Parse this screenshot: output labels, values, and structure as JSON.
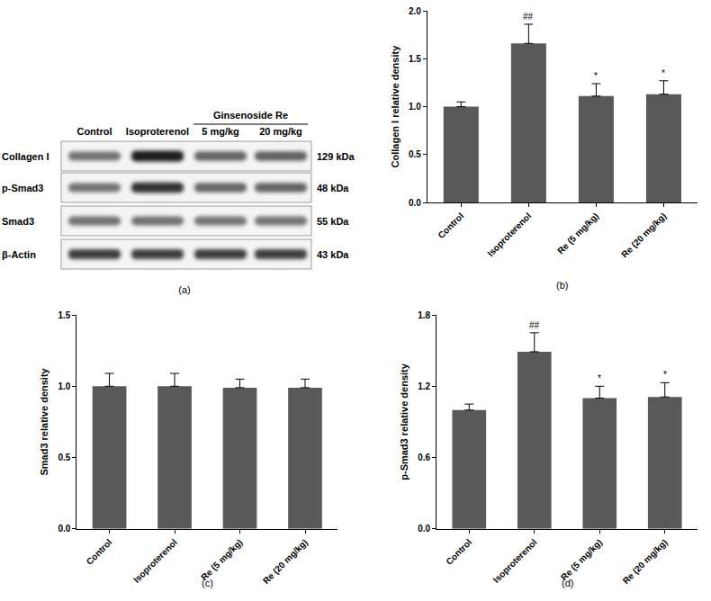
{
  "blot": {
    "lanes": [
      "Control",
      "Isoproterenol",
      {
        "group": "Ginsenoside Re",
        "lanes": [
          "5 mg/kg",
          "20 mg/kg"
        ]
      }
    ],
    "rows": [
      {
        "label": "Collagen I",
        "size": "129 kDa"
      },
      {
        "label": "p-Smad3",
        "size": "48 kDa"
      },
      {
        "label": "Smad3",
        "size": "55 kDa"
      },
      {
        "label": "β-Actin",
        "size": "43 kDa"
      }
    ],
    "label": "(a)"
  },
  "chart_data": [
    {
      "type": "bar",
      "label": "(b)",
      "categories": [
        "Control",
        "Isoproterenol",
        "Re (5 mg/kg)",
        "Re (20 mg/kg)"
      ],
      "values": [
        1.0,
        1.66,
        1.11,
        1.13
      ],
      "errors": [
        0.05,
        0.2,
        0.13,
        0.14
      ],
      "y_label": "Collagen I relative density",
      "color": "#595959",
      "ylim": [
        0,
        2
      ],
      "yticks": [
        {
          "value": 0,
          "label": "0.0"
        },
        {
          "value": 0.5,
          "label": "0.5"
        },
        {
          "value": 1,
          "label": "1.0"
        },
        {
          "value": 1.5,
          "label": "1.5"
        },
        {
          "value": 2,
          "label": "2.0"
        }
      ],
      "grid": false,
      "annotations": [
        {
          "category": "Isoproterenol",
          "text": "##"
        },
        {
          "category": "Re (5 mg/kg)",
          "text": "*"
        },
        {
          "category": "Re (20 mg/kg)",
          "text": "*"
        }
      ]
    },
    {
      "type": "bar",
      "label": "(c)",
      "categories": [
        "Control",
        "Isoproterenol",
        "Re (5 mg/kg)",
        "Re (20 mg/kg)"
      ],
      "values": [
        1.0,
        1.0,
        0.99,
        0.99
      ],
      "errors": [
        0.09,
        0.09,
        0.06,
        0.06
      ],
      "y_label": "Smad3 relative density",
      "color": "#595959",
      "ylim": [
        0,
        1.5
      ],
      "yticks": [
        {
          "value": 0,
          "label": "0.0"
        },
        {
          "value": 0.5,
          "label": "0.5"
        },
        {
          "value": 1,
          "label": "1.0"
        },
        {
          "value": 1.5,
          "label": "1.5"
        }
      ],
      "grid": false
    },
    {
      "type": "bar",
      "label": "(d)",
      "categories": [
        "Control",
        "Isoproterenol",
        "Re (5 mg/kg)",
        "Re (20 mg/kg)"
      ],
      "values": [
        1.0,
        1.49,
        1.1,
        1.11
      ],
      "errors": [
        0.05,
        0.16,
        0.1,
        0.12
      ],
      "y_label": "p-Smad3 relative density",
      "color": "#595959",
      "ylim": [
        0,
        1.8
      ],
      "yticks": [
        {
          "value": 0,
          "label": "0.0"
        },
        {
          "value": 0.6,
          "label": "0.6"
        },
        {
          "value": 1.2,
          "label": "1.2"
        },
        {
          "value": 1.8,
          "label": "1.8"
        }
      ],
      "grid": false,
      "annotations": [
        {
          "category": "Isoproterenol",
          "text": "##"
        },
        {
          "category": "Re (5 mg/kg)",
          "text": "*"
        },
        {
          "category": "Re (20 mg/kg)",
          "text": "*"
        }
      ]
    }
  ]
}
